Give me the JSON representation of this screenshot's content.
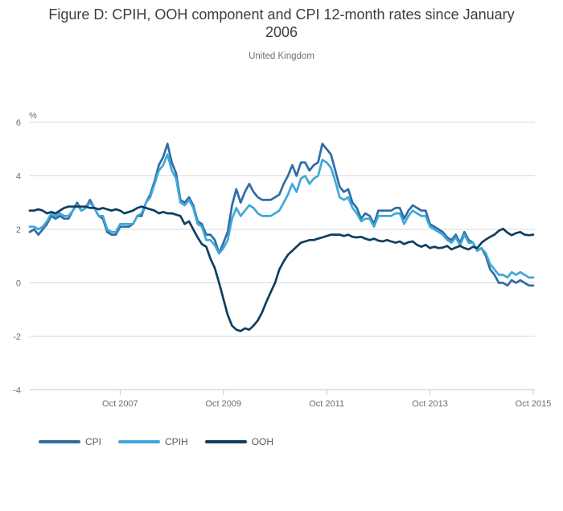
{
  "chart_data": {
    "type": "line",
    "title": "Figure D: CPIH, OOH component and CPI 12-month rates since January 2006",
    "subtitle": "United Kingdom",
    "unit_label": "%",
    "ylabel": "%",
    "ylim": [
      -4,
      6
    ],
    "y_ticks": [
      6,
      4,
      2,
      0,
      -2,
      -4
    ],
    "y_tick_labels": [
      "6",
      "4",
      "2",
      "0",
      "-2",
      "-4"
    ],
    "x_start_month": "Jan 2006",
    "x_end_month": "Oct 2015",
    "x_frequency": "monthly",
    "x_tick_labels": [
      "Oct 2007",
      "Oct 2009",
      "Oct 2011",
      "Oct 2013",
      "Oct 2015"
    ],
    "x_tick_month_indices": [
      21,
      45,
      69,
      93,
      117
    ],
    "grid": true,
    "legend_position": "bottom-left",
    "axis_color": "#b7c9de",
    "gridline_color": "#d9d9d9",
    "series": [
      {
        "name": "CPI",
        "color": "#2e6da4",
        "values": [
          1.9,
          2.0,
          1.8,
          2.0,
          2.2,
          2.5,
          2.4,
          2.5,
          2.4,
          2.4,
          2.7,
          3.0,
          2.7,
          2.8,
          3.1,
          2.8,
          2.5,
          2.4,
          1.9,
          1.8,
          1.8,
          2.1,
          2.1,
          2.1,
          2.2,
          2.5,
          2.5,
          3.0,
          3.3,
          3.8,
          4.4,
          4.7,
          5.2,
          4.5,
          4.1,
          3.1,
          3.0,
          3.2,
          2.9,
          2.3,
          2.2,
          1.8,
          1.8,
          1.6,
          1.1,
          1.5,
          1.9,
          2.9,
          3.5,
          3.0,
          3.4,
          3.7,
          3.4,
          3.2,
          3.1,
          3.1,
          3.1,
          3.2,
          3.3,
          3.7,
          4.0,
          4.4,
          4.0,
          4.5,
          4.5,
          4.2,
          4.4,
          4.5,
          5.2,
          5.0,
          4.8,
          4.2,
          3.6,
          3.4,
          3.5,
          3.0,
          2.8,
          2.4,
          2.6,
          2.5,
          2.2,
          2.7,
          2.7,
          2.7,
          2.7,
          2.8,
          2.8,
          2.4,
          2.7,
          2.9,
          2.8,
          2.7,
          2.7,
          2.2,
          2.1,
          2.0,
          1.9,
          1.7,
          1.6,
          1.8,
          1.5,
          1.9,
          1.6,
          1.5,
          1.2,
          1.3,
          1.0,
          0.5,
          0.3,
          0.0,
          0.0,
          -0.1,
          0.1,
          0.0,
          0.1,
          0.0,
          -0.1,
          -0.1
        ]
      },
      {
        "name": "CPIH",
        "color": "#3fa8d9",
        "values": [
          2.1,
          2.1,
          2.0,
          2.1,
          2.3,
          2.6,
          2.5,
          2.6,
          2.5,
          2.5,
          2.7,
          2.9,
          2.7,
          2.8,
          3.0,
          2.8,
          2.5,
          2.5,
          2.0,
          1.9,
          1.9,
          2.2,
          2.2,
          2.2,
          2.2,
          2.5,
          2.6,
          3.0,
          3.2,
          3.7,
          4.2,
          4.4,
          4.8,
          4.2,
          3.9,
          3.0,
          2.9,
          3.1,
          2.8,
          2.2,
          2.1,
          1.6,
          1.6,
          1.4,
          1.1,
          1.3,
          1.6,
          2.4,
          2.8,
          2.5,
          2.7,
          2.9,
          2.8,
          2.6,
          2.5,
          2.5,
          2.5,
          2.6,
          2.7,
          3.0,
          3.3,
          3.7,
          3.4,
          3.9,
          4.0,
          3.7,
          3.9,
          4.0,
          4.6,
          4.5,
          4.3,
          3.8,
          3.2,
          3.1,
          3.2,
          2.8,
          2.6,
          2.3,
          2.4,
          2.4,
          2.1,
          2.5,
          2.5,
          2.5,
          2.5,
          2.6,
          2.6,
          2.2,
          2.5,
          2.7,
          2.6,
          2.5,
          2.5,
          2.1,
          2.0,
          1.9,
          1.8,
          1.6,
          1.5,
          1.7,
          1.4,
          1.8,
          1.5,
          1.5,
          1.2,
          1.3,
          1.1,
          0.7,
          0.5,
          0.3,
          0.3,
          0.2,
          0.4,
          0.3,
          0.4,
          0.3,
          0.2,
          0.2
        ]
      },
      {
        "name": "OOH",
        "color": "#113e5e",
        "values": [
          2.7,
          2.7,
          2.75,
          2.7,
          2.6,
          2.65,
          2.6,
          2.7,
          2.8,
          2.85,
          2.85,
          2.85,
          2.85,
          2.85,
          2.8,
          2.8,
          2.75,
          2.8,
          2.75,
          2.7,
          2.75,
          2.7,
          2.6,
          2.65,
          2.7,
          2.8,
          2.85,
          2.8,
          2.75,
          2.7,
          2.6,
          2.65,
          2.6,
          2.6,
          2.55,
          2.5,
          2.2,
          2.3,
          2.0,
          1.7,
          1.45,
          1.35,
          0.9,
          0.55,
          0.0,
          -0.6,
          -1.2,
          -1.6,
          -1.75,
          -1.8,
          -1.7,
          -1.75,
          -1.6,
          -1.4,
          -1.1,
          -0.7,
          -0.35,
          0.0,
          0.5,
          0.8,
          1.05,
          1.2,
          1.35,
          1.5,
          1.55,
          1.6,
          1.6,
          1.65,
          1.7,
          1.75,
          1.8,
          1.8,
          1.8,
          1.75,
          1.8,
          1.72,
          1.7,
          1.72,
          1.65,
          1.6,
          1.65,
          1.58,
          1.55,
          1.6,
          1.55,
          1.5,
          1.55,
          1.45,
          1.52,
          1.55,
          1.42,
          1.35,
          1.42,
          1.3,
          1.35,
          1.3,
          1.32,
          1.38,
          1.25,
          1.32,
          1.38,
          1.3,
          1.25,
          1.35,
          1.3,
          1.5,
          1.62,
          1.72,
          1.8,
          1.95,
          2.02,
          1.88,
          1.78,
          1.86,
          1.9,
          1.8,
          1.78,
          1.8
        ]
      }
    ]
  }
}
